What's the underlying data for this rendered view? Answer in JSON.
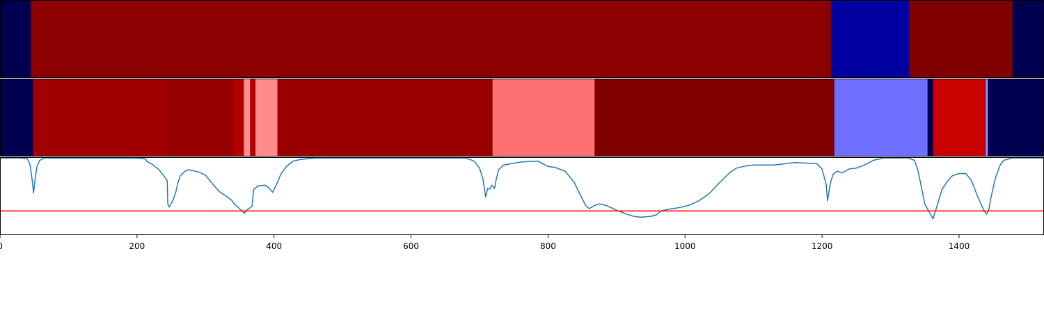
{
  "chart_data": {
    "type": "heatmap",
    "xlim": [
      0,
      1524
    ],
    "xticks": [
      0,
      200,
      400,
      600,
      800,
      1000,
      1200,
      1400
    ],
    "panels": [
      {
        "name": "segmentation-row-1",
        "type": "heatmap",
        "segments": [
          {
            "start": 0,
            "end": 45,
            "color": "#000050"
          },
          {
            "start": 45,
            "end": 1213,
            "color": "#8c0000"
          },
          {
            "start": 1213,
            "end": 1327,
            "color": "#0000a0"
          },
          {
            "start": 1327,
            "end": 1478,
            "color": "#800000"
          },
          {
            "start": 1478,
            "end": 1524,
            "color": "#000050"
          }
        ]
      },
      {
        "name": "segmentation-row-2",
        "type": "heatmap",
        "segments": [
          {
            "start": 0,
            "end": 48,
            "color": "#000050"
          },
          {
            "start": 48,
            "end": 245,
            "color": "#a00000"
          },
          {
            "start": 245,
            "end": 341,
            "color": "#960000"
          },
          {
            "start": 341,
            "end": 356,
            "color": "#b40000"
          },
          {
            "start": 356,
            "end": 365,
            "color": "#ff9090"
          },
          {
            "start": 365,
            "end": 373,
            "color": "#b40000"
          },
          {
            "start": 373,
            "end": 405,
            "color": "#ff8c8c"
          },
          {
            "start": 405,
            "end": 719,
            "color": "#9a0000"
          },
          {
            "start": 719,
            "end": 868,
            "color": "#ff7070"
          },
          {
            "start": 868,
            "end": 1218,
            "color": "#800000"
          },
          {
            "start": 1218,
            "end": 1354,
            "color": "#7070ff"
          },
          {
            "start": 1354,
            "end": 1362,
            "color": "#000050"
          },
          {
            "start": 1362,
            "end": 1439,
            "color": "#c80000"
          },
          {
            "start": 1439,
            "end": 1442,
            "color": "#9090ff"
          },
          {
            "start": 1442,
            "end": 1524,
            "color": "#000050"
          }
        ]
      },
      {
        "name": "signal-line",
        "type": "line",
        "ylim": [
          0,
          1
        ],
        "threshold": 0.31,
        "line_color": "#1f77b4",
        "threshold_color": "#ff0000",
        "points": [
          [
            0,
            0.99
          ],
          [
            30,
            0.99
          ],
          [
            40,
            0.98
          ],
          [
            44,
            0.9
          ],
          [
            47,
            0.7
          ],
          [
            49,
            0.54
          ],
          [
            51,
            0.7
          ],
          [
            54,
            0.88
          ],
          [
            58,
            0.96
          ],
          [
            65,
            0.99
          ],
          [
            120,
            0.99
          ],
          [
            200,
            0.99
          ],
          [
            212,
            0.98
          ],
          [
            215,
            0.94
          ],
          [
            222,
            0.91
          ],
          [
            232,
            0.84
          ],
          [
            240,
            0.75
          ],
          [
            244,
            0.7
          ],
          [
            245,
            0.4
          ],
          [
            247,
            0.36
          ],
          [
            252,
            0.44
          ],
          [
            256,
            0.53
          ],
          [
            260,
            0.68
          ],
          [
            263,
            0.76
          ],
          [
            270,
            0.82
          ],
          [
            275,
            0.84
          ],
          [
            290,
            0.81
          ],
          [
            300,
            0.77
          ],
          [
            310,
            0.66
          ],
          [
            320,
            0.56
          ],
          [
            330,
            0.5
          ],
          [
            338,
            0.45
          ],
          [
            342,
            0.4
          ],
          [
            347,
            0.36
          ],
          [
            352,
            0.32
          ],
          [
            357,
            0.28
          ],
          [
            360,
            0.32
          ],
          [
            368,
            0.37
          ],
          [
            370,
            0.58
          ],
          [
            376,
            0.63
          ],
          [
            387,
            0.64
          ],
          [
            392,
            0.61
          ],
          [
            398,
            0.55
          ],
          [
            402,
            0.62
          ],
          [
            410,
            0.78
          ],
          [
            418,
            0.88
          ],
          [
            428,
            0.95
          ],
          [
            438,
            0.97
          ],
          [
            460,
            0.99
          ],
          [
            680,
            0.99
          ],
          [
            692,
            0.95
          ],
          [
            700,
            0.86
          ],
          [
            705,
            0.72
          ],
          [
            709,
            0.49
          ],
          [
            712,
            0.6
          ],
          [
            715,
            0.59
          ],
          [
            718,
            0.64
          ],
          [
            722,
            0.6
          ],
          [
            724,
            0.7
          ],
          [
            728,
            0.84
          ],
          [
            735,
            0.9
          ],
          [
            748,
            0.92
          ],
          [
            762,
            0.94
          ],
          [
            785,
            0.95
          ],
          [
            800,
            0.88
          ],
          [
            810,
            0.87
          ],
          [
            825,
            0.82
          ],
          [
            838,
            0.68
          ],
          [
            848,
            0.5
          ],
          [
            855,
            0.38
          ],
          [
            860,
            0.34
          ],
          [
            868,
            0.38
          ],
          [
            875,
            0.4
          ],
          [
            885,
            0.38
          ],
          [
            900,
            0.32
          ],
          [
            915,
            0.27
          ],
          [
            925,
            0.24
          ],
          [
            935,
            0.23
          ],
          [
            950,
            0.24
          ],
          [
            958,
            0.26
          ],
          [
            965,
            0.31
          ],
          [
            975,
            0.33
          ],
          [
            990,
            0.35
          ],
          [
            1005,
            0.38
          ],
          [
            1020,
            0.44
          ],
          [
            1035,
            0.53
          ],
          [
            1050,
            0.67
          ],
          [
            1065,
            0.8
          ],
          [
            1075,
            0.86
          ],
          [
            1090,
            0.89
          ],
          [
            1100,
            0.9
          ],
          [
            1130,
            0.9
          ],
          [
            1160,
            0.93
          ],
          [
            1192,
            0.92
          ],
          [
            1200,
            0.85
          ],
          [
            1206,
            0.65
          ],
          [
            1208,
            0.44
          ],
          [
            1212,
            0.66
          ],
          [
            1216,
            0.78
          ],
          [
            1222,
            0.82
          ],
          [
            1230,
            0.8
          ],
          [
            1240,
            0.85
          ],
          [
            1250,
            0.86
          ],
          [
            1262,
            0.9
          ],
          [
            1275,
            0.96
          ],
          [
            1290,
            0.99
          ],
          [
            1325,
            0.99
          ],
          [
            1335,
            0.96
          ],
          [
            1340,
            0.83
          ],
          [
            1345,
            0.62
          ],
          [
            1350,
            0.4
          ],
          [
            1355,
            0.32
          ],
          [
            1362,
            0.21
          ],
          [
            1368,
            0.38
          ],
          [
            1375,
            0.58
          ],
          [
            1382,
            0.68
          ],
          [
            1390,
            0.76
          ],
          [
            1400,
            0.79
          ],
          [
            1410,
            0.79
          ],
          [
            1418,
            0.7
          ],
          [
            1427,
            0.5
          ],
          [
            1436,
            0.32
          ],
          [
            1440,
            0.27
          ],
          [
            1443,
            0.31
          ],
          [
            1447,
            0.5
          ],
          [
            1453,
            0.73
          ],
          [
            1460,
            0.9
          ],
          [
            1465,
            0.96
          ],
          [
            1478,
            0.99
          ],
          [
            1524,
            0.99
          ]
        ]
      }
    ]
  }
}
